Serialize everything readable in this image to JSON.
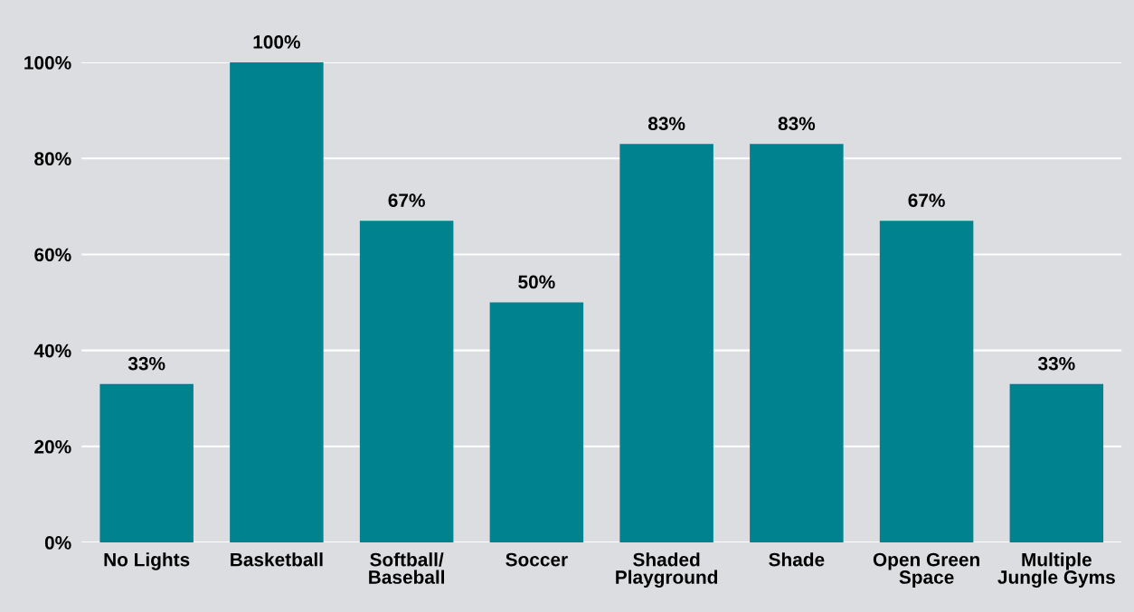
{
  "chart_data": {
    "type": "bar",
    "categories": [
      "No Lights",
      "Basketball",
      "Softball/\nBaseball",
      "Soccer",
      "Shaded\nPlayground",
      "Shade",
      "Open Green\nSpace",
      "Multiple\nJungle Gyms"
    ],
    "values": [
      33,
      100,
      67,
      50,
      83,
      83,
      67,
      33
    ],
    "value_labels": [
      "33%",
      "100%",
      "67%",
      "50%",
      "83%",
      "83%",
      "67%",
      "33%"
    ],
    "color": "#00828f",
    "ylim": [
      0,
      100
    ],
    "yticks": [
      {
        "value": 0,
        "label": "0%"
      },
      {
        "value": 20,
        "label": "20%"
      },
      {
        "value": 40,
        "label": "40%"
      },
      {
        "value": 60,
        "label": "60%"
      },
      {
        "value": 80,
        "label": "80%"
      },
      {
        "value": 100,
        "label": "100%"
      }
    ],
    "grid": "y"
  }
}
